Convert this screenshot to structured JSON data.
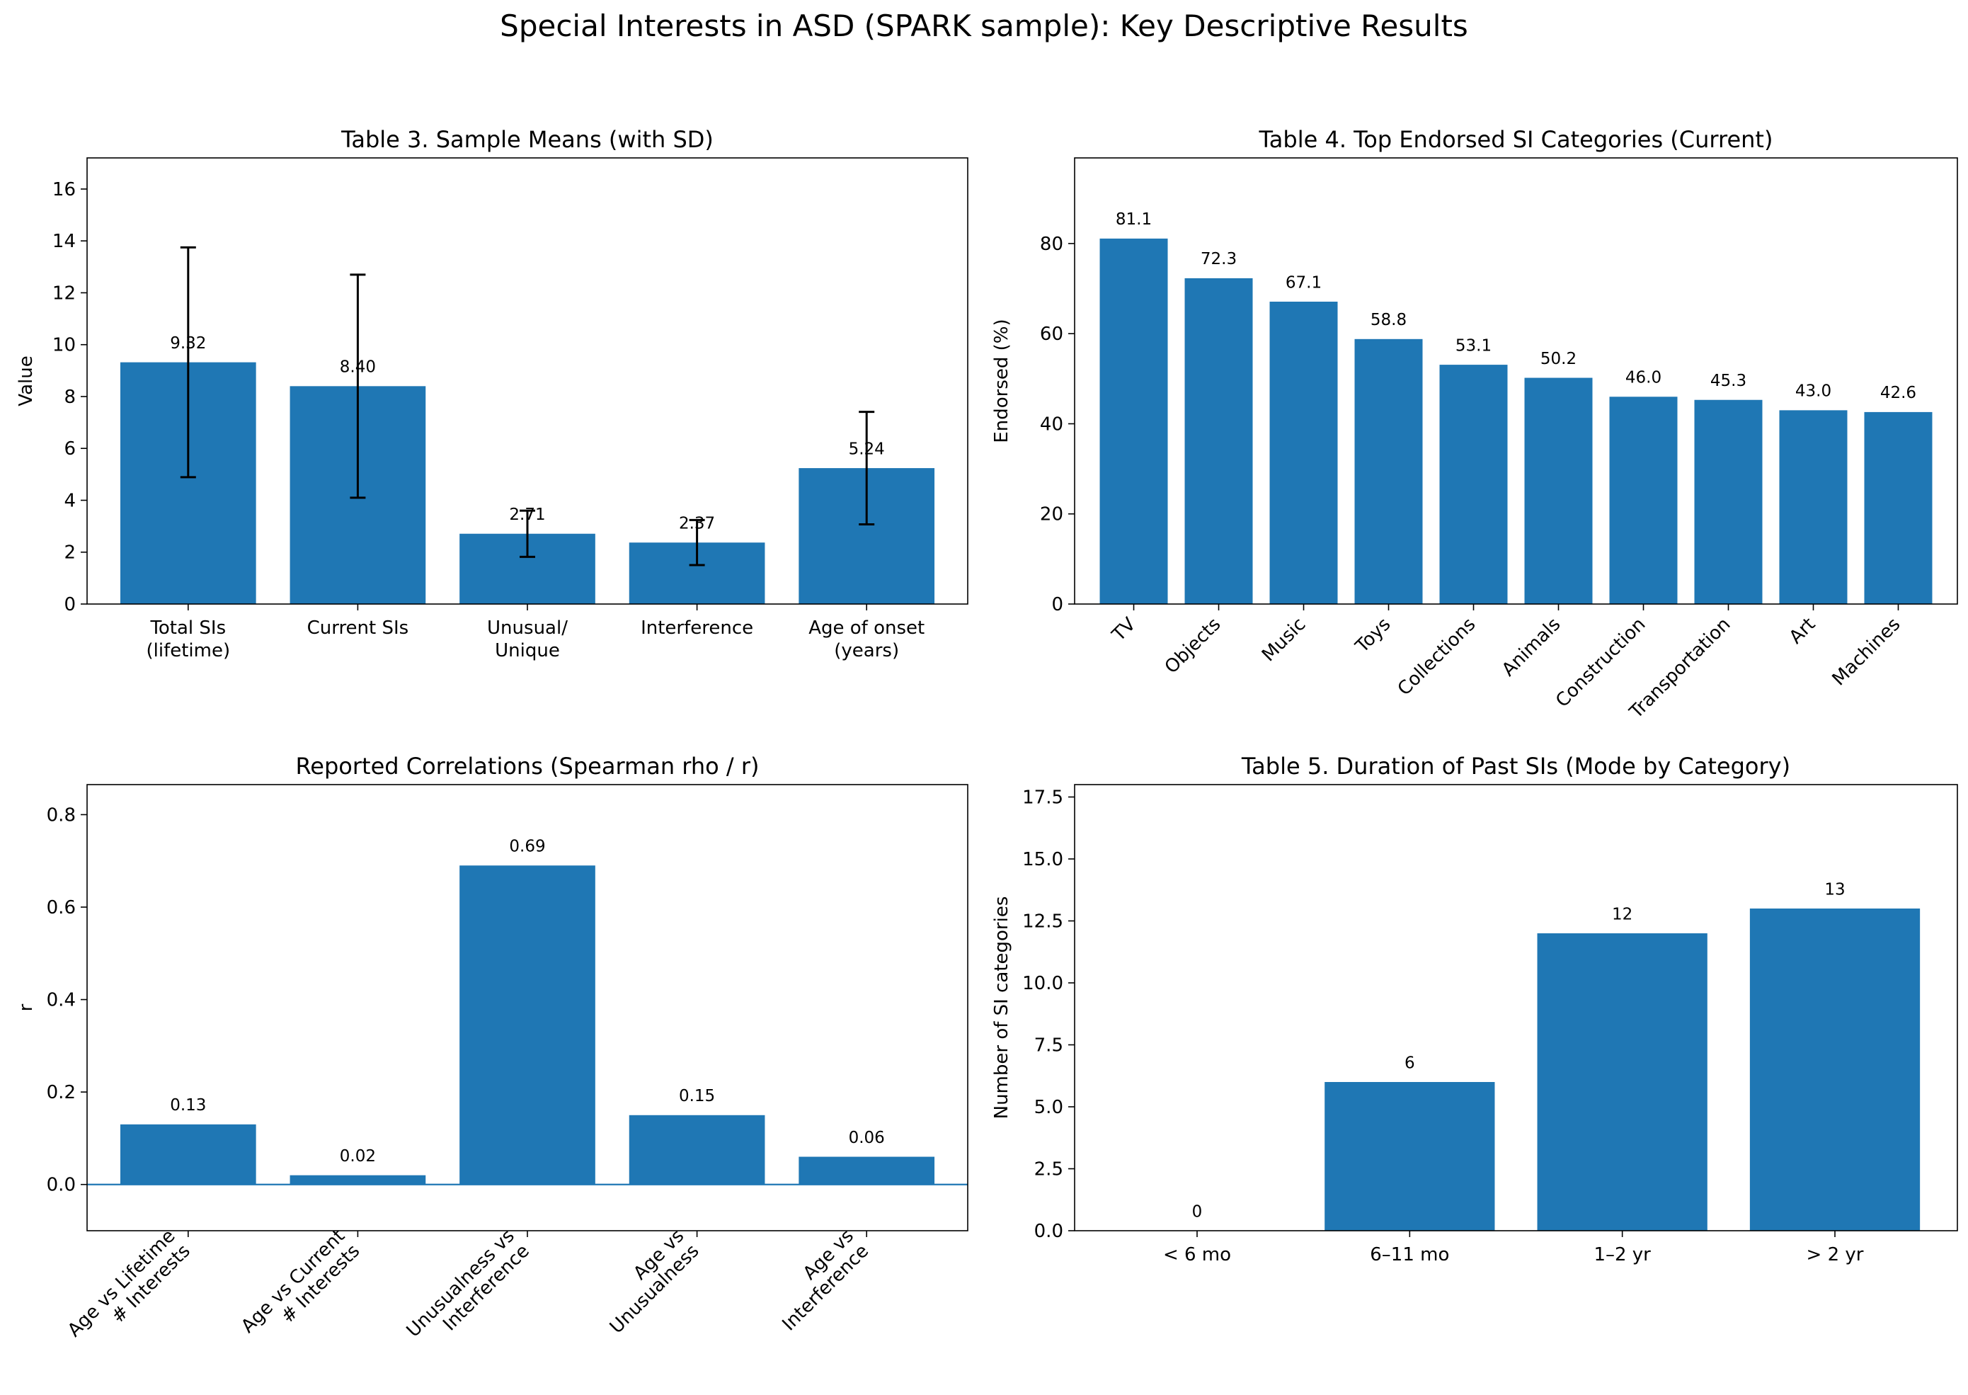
{
  "figure": {
    "title": "Special Interests in ASD (SPARK sample): Key Descriptive Results"
  },
  "colors": {
    "bar": "#1f77b4",
    "axis": "#000000",
    "zero_line": "#1f77b4"
  },
  "chart_data": [
    {
      "type": "bar",
      "title": "Table 3. Sample Means (with SD)",
      "xlabel": "",
      "ylabel": "Value",
      "categories": [
        "Total SIs\n(lifetime)",
        "Current SIs",
        "Unusual/\nUnique",
        "Interference",
        "Age of onset\n(years)"
      ],
      "values": [
        9.32,
        8.4,
        2.71,
        2.37,
        5.24
      ],
      "errors": [
        4.43,
        4.3,
        0.89,
        0.87,
        2.17
      ],
      "value_labels": [
        "9.32",
        "8.40",
        "2.71",
        "2.37",
        "5.24"
      ],
      "ylim": [
        0,
        17.2
      ],
      "yticks": [
        0,
        2,
        4,
        6,
        8,
        10,
        12,
        14,
        16
      ],
      "ytick_labels": [
        "0",
        "2",
        "4",
        "6",
        "8",
        "10",
        "12",
        "14",
        "16"
      ],
      "label_rotation": 0
    },
    {
      "type": "bar",
      "title": "Table 4. Top Endorsed SI Categories (Current)",
      "xlabel": "",
      "ylabel": "Endorsed (%)",
      "categories": [
        "TV",
        "Objects",
        "Music",
        "Toys",
        "Collections",
        "Animals",
        "Construction",
        "Transportation",
        "Art",
        "Machines"
      ],
      "values": [
        81.1,
        72.3,
        67.1,
        58.8,
        53.1,
        50.2,
        46.0,
        45.3,
        43.0,
        42.6
      ],
      "value_labels": [
        "81.1",
        "72.3",
        "67.1",
        "58.8",
        "53.1",
        "50.2",
        "46.0",
        "45.3",
        "43.0",
        "42.6"
      ],
      "ylim": [
        0,
        99
      ],
      "yticks": [
        0,
        20,
        40,
        60,
        80
      ],
      "ytick_labels": [
        "0",
        "20",
        "40",
        "60",
        "80"
      ],
      "label_rotation": -45
    },
    {
      "type": "bar",
      "title": "Reported Correlations (Spearman rho / r)",
      "xlabel": "",
      "ylabel": "r",
      "categories": [
        "Age vs Lifetime\n# Interests",
        "Age vs Current\n# Interests",
        "Unusualness vs\nInterference",
        "Age vs\nUnusualness",
        "Age vs\nInterference"
      ],
      "values": [
        0.13,
        0.02,
        0.69,
        0.15,
        0.06
      ],
      "value_labels": [
        "0.13",
        "0.02",
        "0.69",
        "0.15",
        "0.06"
      ],
      "ylim": [
        -0.1,
        0.865
      ],
      "yticks": [
        0.0,
        0.2,
        0.4,
        0.6,
        0.8
      ],
      "ytick_labels": [
        "0.0",
        "0.2",
        "0.4",
        "0.6",
        "0.8"
      ],
      "zero_line": true,
      "label_rotation": -45
    },
    {
      "type": "bar",
      "title": "Table 5. Duration of Past SIs (Mode by Category)",
      "xlabel": "",
      "ylabel": "Number of SI categories",
      "categories": [
        "< 6 mo",
        "6–11 mo",
        "1–2 yr",
        "> 2 yr"
      ],
      "values": [
        0,
        6,
        12,
        13
      ],
      "value_labels": [
        "0",
        "6",
        "12",
        "13"
      ],
      "ylim": [
        0,
        18
      ],
      "yticks": [
        0.0,
        2.5,
        5.0,
        7.5,
        10.0,
        12.5,
        15.0,
        17.5
      ],
      "ytick_labels": [
        "0.0",
        "2.5",
        "5.0",
        "7.5",
        "10.0",
        "12.5",
        "15.0",
        "17.5"
      ],
      "label_rotation": 0
    }
  ]
}
